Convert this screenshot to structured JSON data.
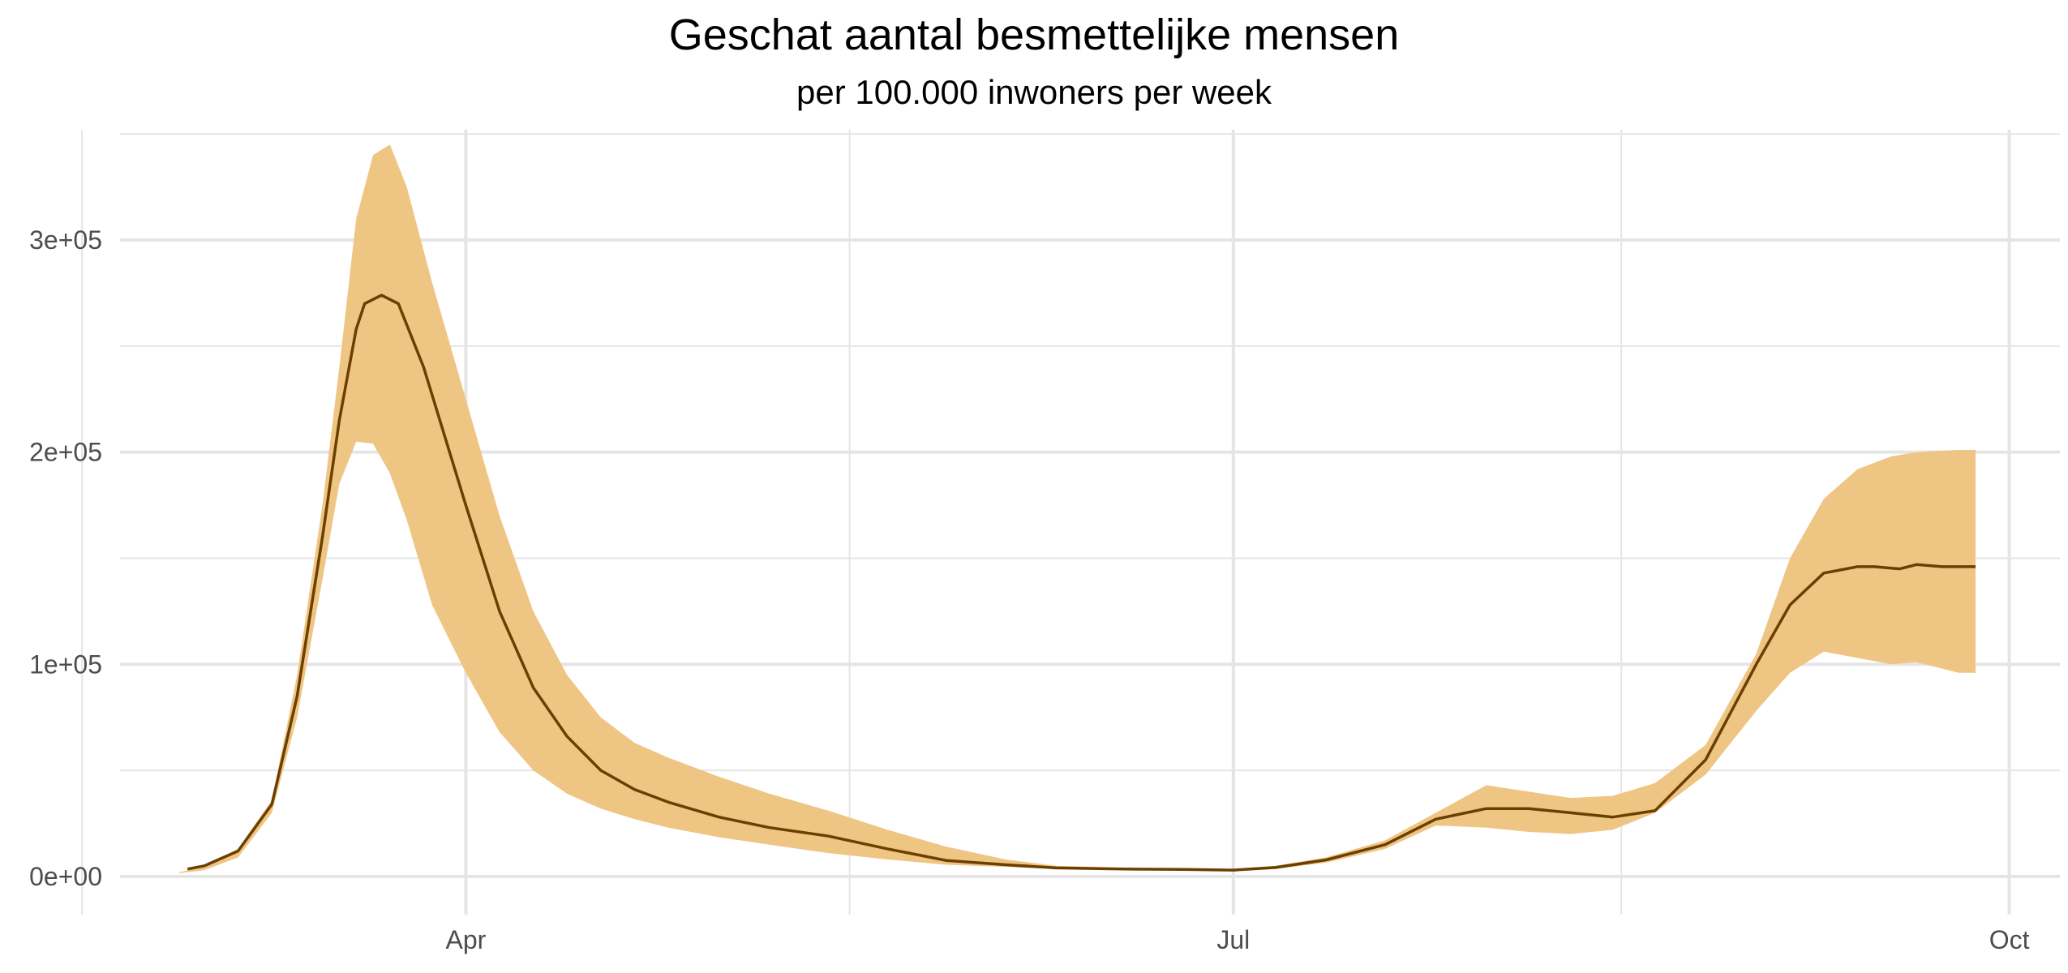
{
  "chart_data": {
    "type": "area",
    "title": "Geschat aantal besmettelijke mensen",
    "subtitle": "per 100.000 inwoners per week",
    "xlabel": "",
    "ylabel": "",
    "x_ticks": [
      {
        "label": "Apr",
        "date": "2020-04-01"
      },
      {
        "label": "Jul",
        "date": "2020-07-01"
      },
      {
        "label": "Oct",
        "date": "2020-10-01"
      }
    ],
    "y_ticks": [
      {
        "label": "0e+00",
        "value": 0
      },
      {
        "label": "1e+05",
        "value": 100000
      },
      {
        "label": "2e+05",
        "value": 200000
      },
      {
        "label": "3e+05",
        "value": 300000
      }
    ],
    "xlim": [
      "2020-02-20",
      "2020-10-07"
    ],
    "ylim": [
      -18000,
      352000
    ],
    "grid": true,
    "colors": {
      "band": "#efc584",
      "line": "#6b3f00",
      "grid": "#e5e5e5"
    },
    "series": [
      {
        "x": [
          "2020-02-27",
          "2020-03-01",
          "2020-03-05",
          "2020-03-09",
          "2020-03-12",
          "2020-03-15",
          "2020-03-17",
          "2020-03-19",
          "2020-03-21",
          "2020-03-23",
          "2020-03-25",
          "2020-03-28",
          "2020-04-01",
          "2020-04-05",
          "2020-04-09",
          "2020-04-13",
          "2020-04-17",
          "2020-04-21",
          "2020-04-25",
          "2020-05-01",
          "2020-05-07",
          "2020-05-14",
          "2020-05-21",
          "2020-05-28",
          "2020-06-04",
          "2020-06-10",
          "2020-06-18",
          "2020-06-25",
          "2020-07-01",
          "2020-07-06",
          "2020-07-12",
          "2020-07-19",
          "2020-07-25",
          "2020-07-31",
          "2020-08-05",
          "2020-08-10",
          "2020-08-15",
          "2020-08-20",
          "2020-08-26",
          "2020-09-01",
          "2020-09-05",
          "2020-09-09",
          "2020-09-13",
          "2020-09-17",
          "2020-09-20",
          "2020-09-22",
          "2020-09-25",
          "2020-09-27"
        ],
        "lower": [
          1500,
          3000,
          9000,
          30000,
          75000,
          140000,
          185000,
          205000,
          204000,
          190000,
          168000,
          128000,
          96000,
          68000,
          50000,
          39000,
          32000,
          27000,
          23000,
          18500,
          15000,
          11000,
          8000,
          5500,
          4500,
          3500,
          3300,
          3000,
          2700,
          3500,
          6500,
          13000,
          24000,
          23000,
          21000,
          20000,
          22000,
          30000,
          48000,
          78000,
          96000,
          106000,
          103000,
          100000,
          101000,
          99000,
          96000,
          96000
        ],
        "upper": [
          2000,
          4500,
          13000,
          36000,
          95000,
          175000,
          240000,
          310000,
          340000,
          345000,
          325000,
          280000,
          225000,
          170000,
          125000,
          95000,
          75000,
          63000,
          56000,
          47000,
          39000,
          31000,
          22000,
          14000,
          8000,
          5000,
          4000,
          3800,
          3500,
          5000,
          9000,
          17000,
          30000,
          43000,
          40000,
          37000,
          38000,
          44000,
          62000,
          105000,
          150000,
          178000,
          192000,
          198000,
          200000,
          200500,
          201000,
          201000
        ]
      },
      {
        "x": [
          "2020-02-28",
          "2020-03-01",
          "2020-03-05",
          "2020-03-09",
          "2020-03-12",
          "2020-03-15",
          "2020-03-17",
          "2020-03-19",
          "2020-03-20",
          "2020-03-22",
          "2020-03-24",
          "2020-03-27",
          "2020-04-01",
          "2020-04-05",
          "2020-04-09",
          "2020-04-13",
          "2020-04-17",
          "2020-04-21",
          "2020-04-25",
          "2020-05-01",
          "2020-05-07",
          "2020-05-14",
          "2020-05-21",
          "2020-05-28",
          "2020-06-04",
          "2020-06-10",
          "2020-06-18",
          "2020-06-25",
          "2020-07-01",
          "2020-07-06",
          "2020-07-12",
          "2020-07-19",
          "2020-07-25",
          "2020-07-31",
          "2020-08-05",
          "2020-08-10",
          "2020-08-15",
          "2020-08-20",
          "2020-08-26",
          "2020-09-01",
          "2020-09-05",
          "2020-09-09",
          "2020-09-13",
          "2020-09-15",
          "2020-09-18",
          "2020-09-20",
          "2020-09-23",
          "2020-09-27"
        ],
        "values": [
          3500,
          5000,
          12000,
          34000,
          85000,
          160000,
          215000,
          258000,
          270000,
          274000,
          270000,
          240000,
          175000,
          125000,
          89000,
          66000,
          50000,
          41000,
          35000,
          28000,
          23000,
          19000,
          13000,
          7500,
          5500,
          4000,
          3500,
          3300,
          3000,
          4200,
          7800,
          15000,
          27000,
          32000,
          32000,
          30000,
          28000,
          31000,
          55000,
          100000,
          128000,
          143000,
          146000,
          146000,
          145000,
          147000,
          146000,
          146000
        ]
      }
    ]
  }
}
